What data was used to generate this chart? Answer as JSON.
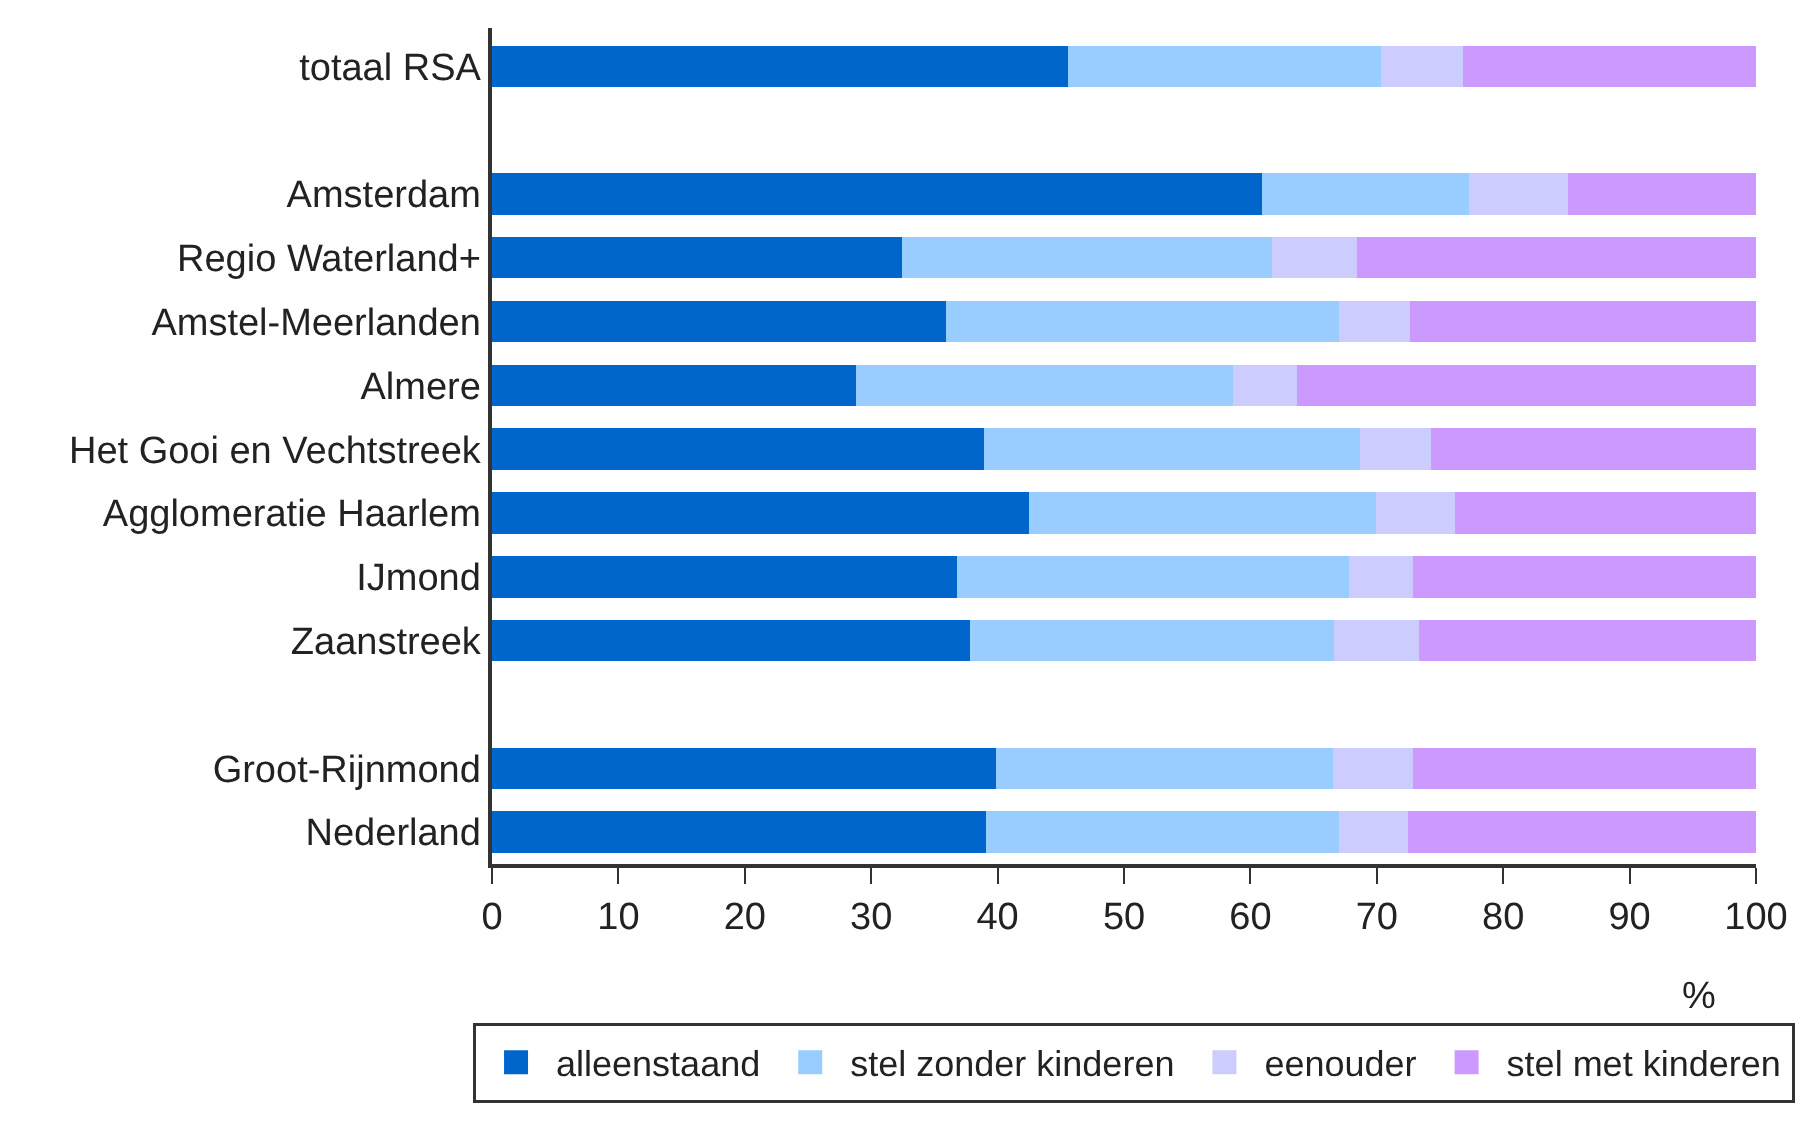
{
  "chart_data": {
    "type": "bar",
    "orientation": "horizontal",
    "stacked": true,
    "categories": [
      "totaal RSA",
      null,
      "Amsterdam",
      "Regio Waterland+",
      "Amstel-Meerlanden",
      "Almere",
      "Het Gooi en Vechtstreek",
      "Agglomeratie Haarlem",
      "IJmond",
      "Zaanstreek",
      null,
      "Groot-Rijnmond",
      "Nederland"
    ],
    "series": [
      {
        "name": "alleenstaand",
        "color": "#0066cc",
        "values": [
          45.6,
          null,
          60.9,
          32.4,
          35.9,
          28.8,
          38.9,
          42.5,
          36.8,
          37.8,
          null,
          39.9,
          39.1
        ]
      },
      {
        "name": "stel zonder kinderen",
        "color": "#99ccff",
        "values": [
          24.7,
          null,
          16.4,
          29.3,
          31.1,
          29.8,
          29.8,
          27.4,
          31.0,
          28.8,
          null,
          26.6,
          27.9
        ]
      },
      {
        "name": "eenouder",
        "color": "#ccccff",
        "values": [
          6.5,
          null,
          7.8,
          6.7,
          5.6,
          5.1,
          5.6,
          6.3,
          5.1,
          6.7,
          null,
          6.4,
          5.5
        ]
      },
      {
        "name": "stel met kinderen",
        "color": "#cc99ff",
        "values": [
          23.2,
          null,
          14.9,
          31.6,
          27.4,
          36.3,
          25.7,
          23.8,
          27.1,
          26.7,
          null,
          27.1,
          27.5
        ]
      }
    ],
    "xlabel": "%",
    "xlim": [
      0,
      100
    ],
    "xticks": [
      0,
      10,
      20,
      30,
      40,
      50,
      60,
      70,
      80,
      90,
      100
    ],
    "legend": "bottom"
  }
}
